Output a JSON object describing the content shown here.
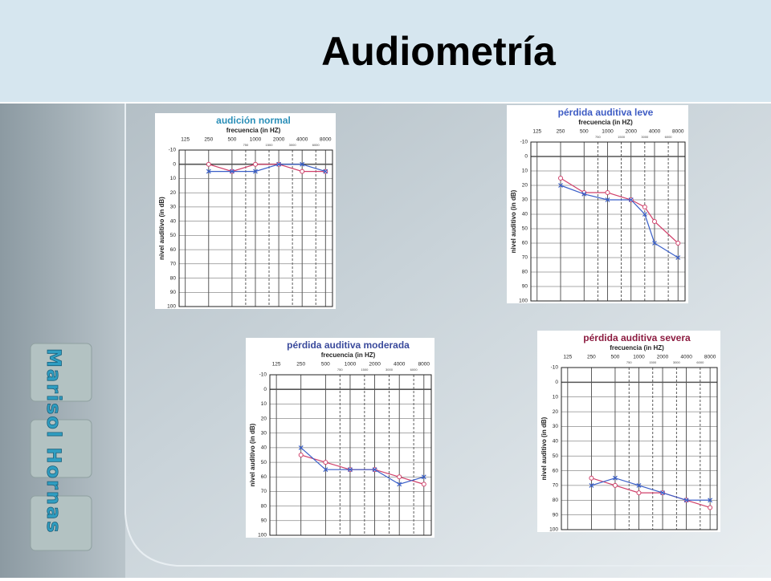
{
  "slide_title": "Audiometría",
  "author": "Marisol Hornas",
  "chart_data": [
    {
      "type": "line",
      "title": "audición normal",
      "title_color": "#2b8fb8",
      "x_label": "frecuencia (in HZ)",
      "y_label": "nivel auditivo (in dB)",
      "x": [
        250,
        500,
        1000,
        2000,
        4000,
        8000
      ],
      "series": [
        {
          "color": "#d0406a",
          "marker": "circle",
          "values": [
            0,
            5,
            0,
            0,
            5,
            5
          ]
        },
        {
          "color": "#3a5fc8",
          "marker": "x",
          "values": [
            5,
            5,
            5,
            0,
            0,
            5
          ]
        }
      ],
      "log_x": true,
      "xlim": [
        104,
        9850
      ],
      "xticks": [
        125,
        250,
        500,
        1000,
        2000,
        4000,
        8000
      ],
      "xticks_minor": [
        750,
        1500,
        3000,
        6000
      ],
      "ylim": [
        -10,
        100
      ],
      "y_inverted": true,
      "yticks": [
        -10,
        0,
        10,
        20,
        30,
        40,
        50,
        60,
        70,
        80,
        90,
        100
      ],
      "grid": true
    },
    {
      "type": "line",
      "title": "pérdida auditiva leve",
      "title_color": "#3e5cc4",
      "x_label": "frecuencia (in HZ)",
      "y_label": "nivel auditivo (in dB)",
      "x": [
        250,
        500,
        1000,
        2000,
        3000,
        4000,
        8000
      ],
      "series": [
        {
          "color": "#d0406a",
          "marker": "circle",
          "values": [
            15,
            25,
            25,
            30,
            35,
            45,
            60
          ]
        },
        {
          "color": "#3a5fc8",
          "marker": "x",
          "values": [
            20,
            26,
            30,
            30,
            40,
            60,
            70
          ]
        }
      ],
      "log_x": true,
      "xlim": [
        104,
        9850
      ],
      "xticks": [
        125,
        250,
        500,
        1000,
        2000,
        4000,
        8000
      ],
      "xticks_minor": [
        750,
        1500,
        3000,
        6000
      ],
      "ylim": [
        -10,
        100
      ],
      "y_inverted": true,
      "yticks": [
        -10,
        0,
        10,
        20,
        30,
        40,
        50,
        60,
        70,
        80,
        90,
        100
      ],
      "grid": true
    },
    {
      "type": "line",
      "title": "pérdida auditiva moderada",
      "title_color": "#3a4a9c",
      "x_label": "frecuencia (in HZ)",
      "y_label": "nivel auditivo (in dB)",
      "x": [
        250,
        500,
        1000,
        2000,
        4000,
        8000
      ],
      "series": [
        {
          "color": "#d0406a",
          "marker": "circle",
          "values": [
            45,
            50,
            55,
            55,
            60,
            65
          ]
        },
        {
          "color": "#3a5fc8",
          "marker": "x",
          "values": [
            40,
            55,
            55,
            55,
            65,
            60
          ]
        }
      ],
      "log_x": true,
      "xlim": [
        104,
        9850
      ],
      "xticks": [
        125,
        250,
        500,
        1000,
        2000,
        4000,
        8000
      ],
      "xticks_minor": [
        750,
        1500,
        3000,
        6000
      ],
      "ylim": [
        -10,
        100
      ],
      "y_inverted": true,
      "yticks": [
        -10,
        0,
        10,
        20,
        30,
        40,
        50,
        60,
        70,
        80,
        90,
        100
      ],
      "grid": true
    },
    {
      "type": "line",
      "title": "pérdida auditiva severa",
      "title_color": "#8c1c40",
      "x_label": "frecuencia (in HZ)",
      "y_label": "nivel auditivo (in dB)",
      "x": [
        250,
        500,
        1000,
        2000,
        4000,
        8000
      ],
      "series": [
        {
          "color": "#d0406a",
          "marker": "circle",
          "values": [
            65,
            70,
            75,
            75,
            80,
            85
          ]
        },
        {
          "color": "#3a5fc8",
          "marker": "x",
          "values": [
            70,
            65,
            70,
            75,
            80,
            80
          ]
        }
      ],
      "log_x": true,
      "xlim": [
        104,
        9850
      ],
      "xticks": [
        125,
        250,
        500,
        1000,
        2000,
        4000,
        8000
      ],
      "xticks_minor": [
        750,
        1500,
        3000,
        6000
      ],
      "ylim": [
        -10,
        100
      ],
      "y_inverted": true,
      "yticks": [
        -10,
        0,
        10,
        20,
        30,
        40,
        50,
        60,
        70,
        80,
        90,
        100
      ],
      "grid": true
    }
  ]
}
